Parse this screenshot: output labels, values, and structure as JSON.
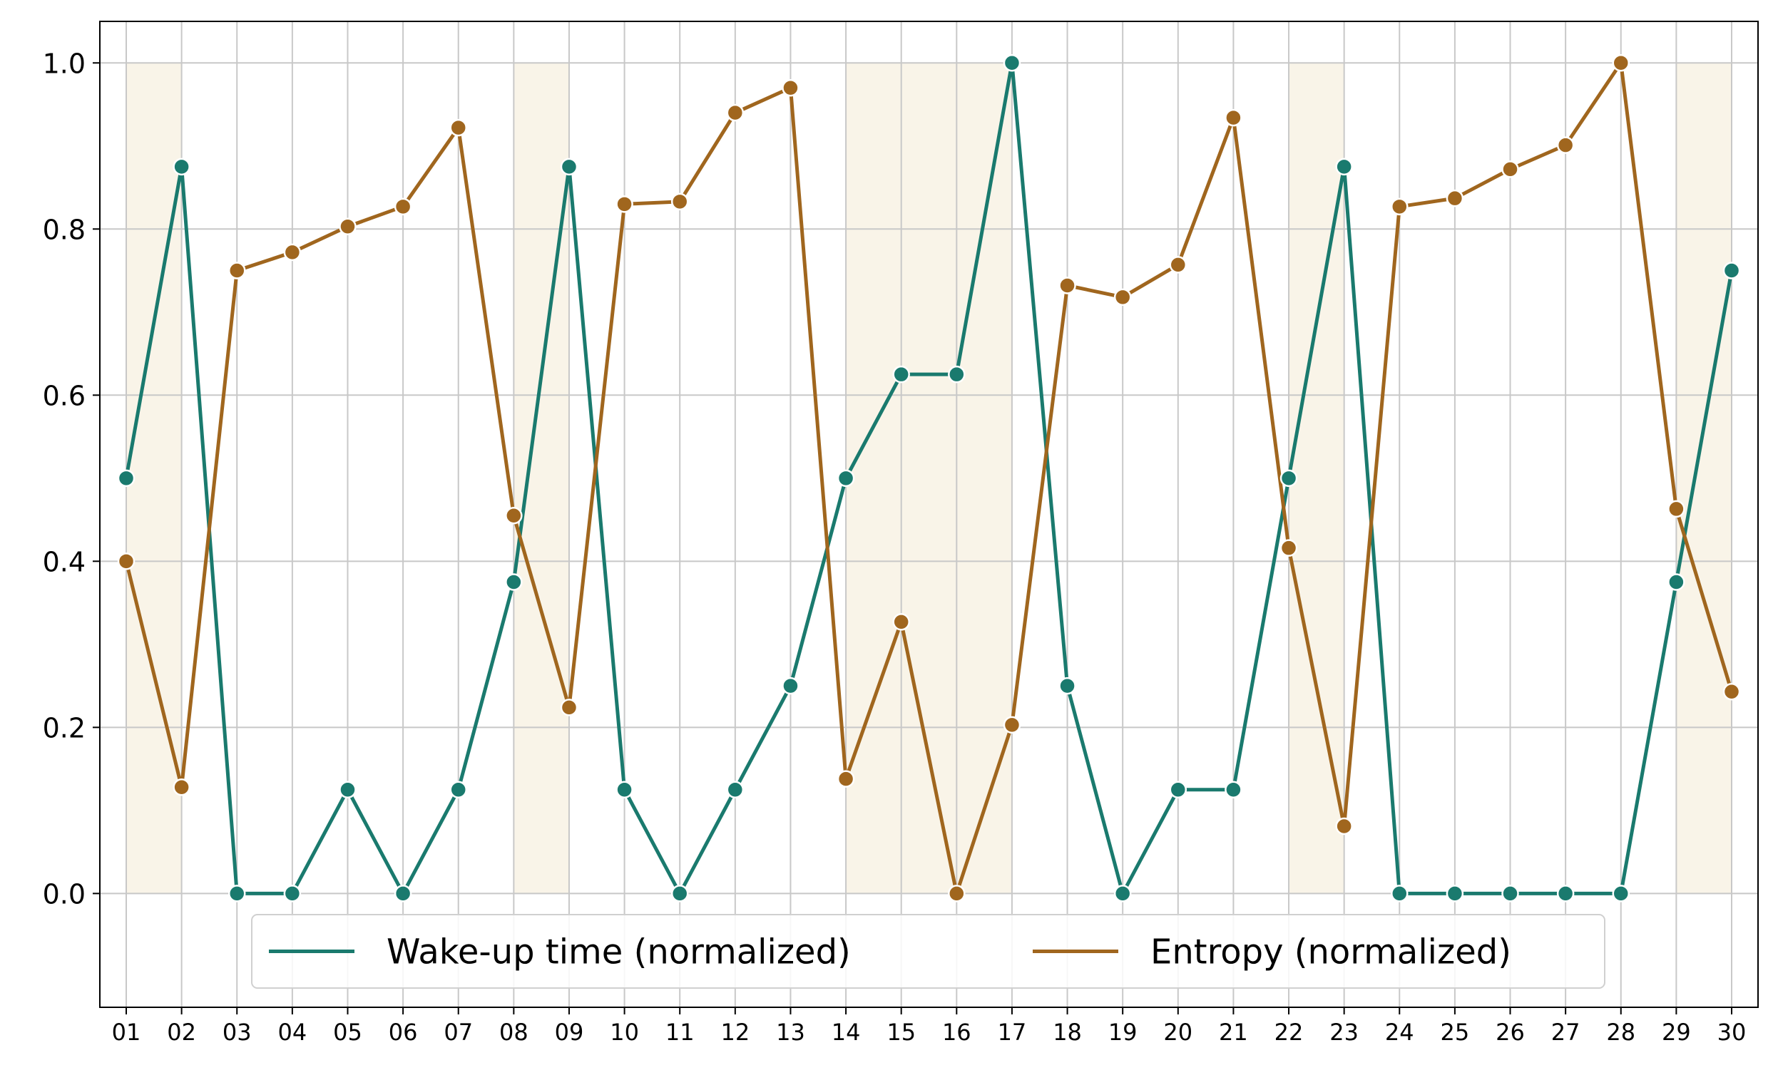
{
  "chart_data": {
    "type": "line",
    "categories": [
      "01",
      "02",
      "03",
      "04",
      "05",
      "06",
      "07",
      "08",
      "09",
      "10",
      "11",
      "12",
      "13",
      "14",
      "15",
      "16",
      "17",
      "18",
      "19",
      "20",
      "21",
      "22",
      "23",
      "24",
      "25",
      "26",
      "27",
      "28",
      "29",
      "30"
    ],
    "series": [
      {
        "name": "Wake-up time (normalized)",
        "color": "#1a7a6e",
        "values": [
          0.5,
          0.875,
          0,
          0,
          0.125,
          0,
          0.125,
          0.375,
          0.875,
          0.125,
          0,
          0.125,
          0.25,
          0.5,
          0.625,
          0.625,
          1.0,
          0.25,
          0,
          0.125,
          0.125,
          0.5,
          0.875,
          0,
          0,
          0,
          0,
          0,
          0.375,
          0.75
        ]
      },
      {
        "name": "Entropy (normalized)",
        "color": "#a0661e",
        "values": [
          0.4,
          0.128,
          0.75,
          0.772,
          0.803,
          0.827,
          0.922,
          0.455,
          0.224,
          0.83,
          0.833,
          0.94,
          0.97,
          0.138,
          0.327,
          0,
          0.203,
          0.732,
          0.718,
          0.757,
          0.934,
          0.416,
          0.081,
          0.827,
          0.837,
          0.872,
          0.901,
          1.0,
          0.463,
          0.243
        ]
      }
    ],
    "highlighted_ranges": [
      [
        "01",
        "02"
      ],
      [
        "08",
        "09"
      ],
      [
        "14",
        "17"
      ],
      [
        "22",
        "23"
      ],
      [
        "29",
        "30"
      ]
    ],
    "highlight_color": "#f9f4e8",
    "ylim": [
      -0.137,
      1.05
    ],
    "yticks": [
      "0.0",
      "0.2",
      "0.4",
      "0.6",
      "0.8",
      "1.0"
    ],
    "ytick_values": [
      0,
      0.2,
      0.4,
      0.6,
      0.8,
      1.0
    ],
    "grid": true,
    "legend_placement": "bottom-center",
    "title": "",
    "xlabel": "",
    "ylabel": ""
  }
}
